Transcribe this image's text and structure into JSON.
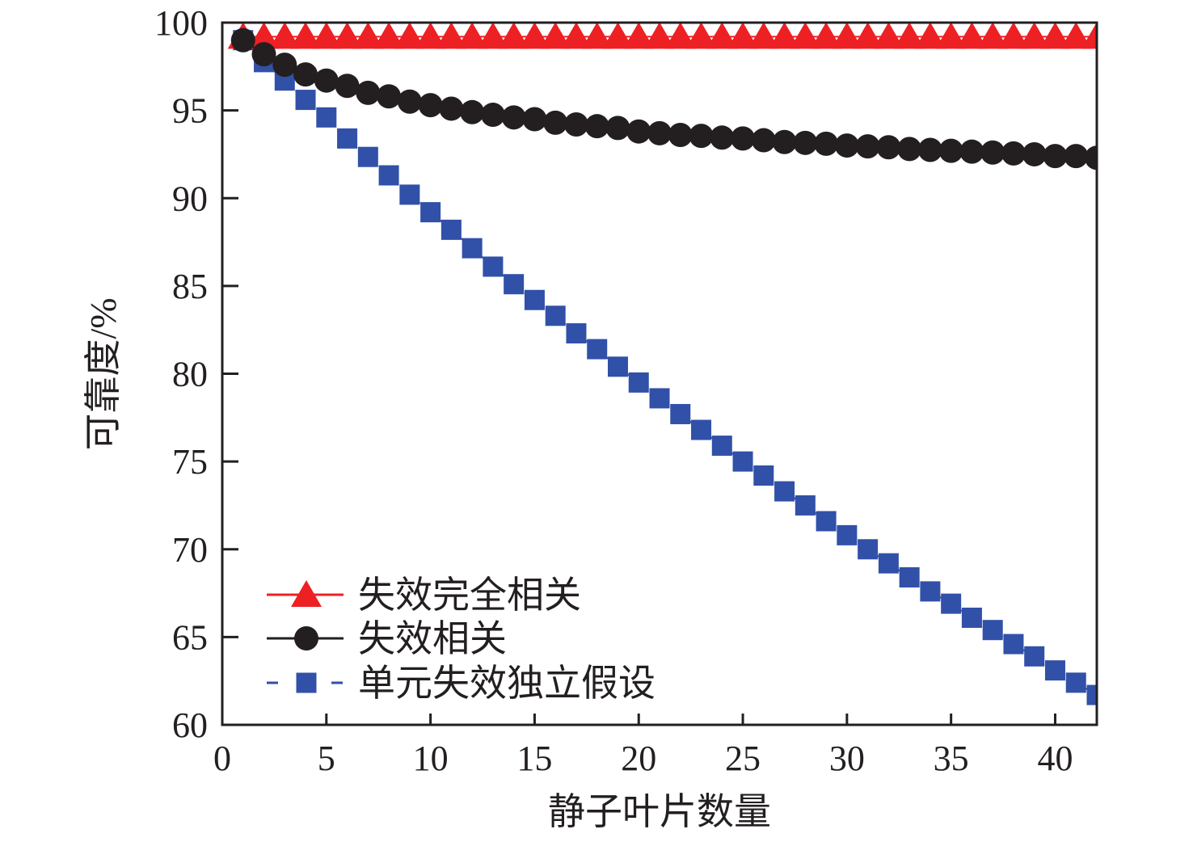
{
  "chart_data": {
    "type": "line",
    "title": "",
    "xlabel": "静子叶片数量",
    "ylabel": "可靠度/%",
    "xlim": [
      0,
      42
    ],
    "ylim": [
      60,
      100
    ],
    "xticks": [
      0,
      5,
      10,
      15,
      20,
      25,
      30,
      35,
      40
    ],
    "yticks": [
      60,
      65,
      70,
      75,
      80,
      85,
      90,
      95,
      100
    ],
    "grid": false,
    "legend_position": "bottom-left",
    "x": [
      1,
      2,
      3,
      4,
      5,
      6,
      7,
      8,
      9,
      10,
      11,
      12,
      13,
      14,
      15,
      16,
      17,
      18,
      19,
      20,
      21,
      22,
      23,
      24,
      25,
      26,
      27,
      28,
      29,
      30,
      31,
      32,
      33,
      34,
      35,
      36,
      37,
      38,
      39,
      40,
      41,
      42
    ],
    "series": [
      {
        "name": "失效完全相关",
        "color": "#ed2024",
        "marker": "triangle",
        "line": "solid",
        "values": [
          99.2,
          99.2,
          99.2,
          99.2,
          99.2,
          99.2,
          99.2,
          99.2,
          99.2,
          99.2,
          99.2,
          99.2,
          99.2,
          99.2,
          99.2,
          99.2,
          99.2,
          99.2,
          99.2,
          99.2,
          99.2,
          99.2,
          99.2,
          99.2,
          99.2,
          99.2,
          99.2,
          99.2,
          99.2,
          99.2,
          99.2,
          99.2,
          99.2,
          99.2,
          99.2,
          99.2,
          99.2,
          99.2,
          99.2,
          99.2,
          99.2,
          99.2
        ]
      },
      {
        "name": "失效相关",
        "color": "#231f20",
        "marker": "circle",
        "line": "solid",
        "values": [
          99.0,
          98.2,
          97.6,
          97.05,
          96.7,
          96.4,
          96.0,
          95.8,
          95.5,
          95.3,
          95.1,
          94.9,
          94.75,
          94.6,
          94.5,
          94.3,
          94.2,
          94.1,
          94.0,
          93.8,
          93.7,
          93.6,
          93.55,
          93.45,
          93.4,
          93.3,
          93.2,
          93.15,
          93.1,
          93.0,
          92.95,
          92.9,
          92.8,
          92.75,
          92.7,
          92.65,
          92.6,
          92.55,
          92.5,
          92.4,
          92.4,
          92.3
        ]
      },
      {
        "name": "单元失效独立假设",
        "color": "#3150a8",
        "marker": "square",
        "line": "dashed",
        "values": [
          99.0,
          97.75,
          96.7,
          95.6,
          94.6,
          93.4,
          92.35,
          91.3,
          90.2,
          89.2,
          88.2,
          87.15,
          86.1,
          85.1,
          84.2,
          83.3,
          82.3,
          81.4,
          80.4,
          79.5,
          78.6,
          77.7,
          76.8,
          75.9,
          75.0,
          74.2,
          73.3,
          72.5,
          71.6,
          70.8,
          70.0,
          69.2,
          68.4,
          67.6,
          66.9,
          66.1,
          65.4,
          64.6,
          63.9,
          63.1,
          62.4,
          61.7
        ]
      }
    ]
  }
}
